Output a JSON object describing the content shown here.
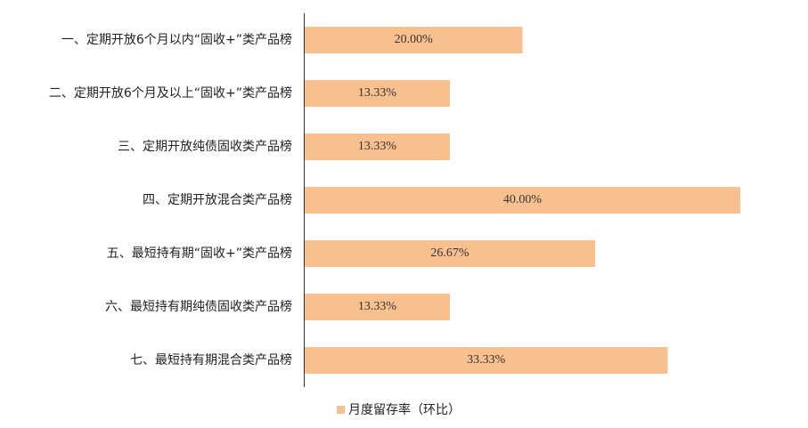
{
  "chart_data": {
    "type": "hbar",
    "categories": [
      "一、定期开放6个月以内“固收+”类产品榜",
      "二、定期开放6个月及以上“固收+”类产品榜",
      "三、定期开放纯债固收类产品榜",
      "四、定期开放混合类产品榜",
      "五、最短持有期“固收+”类产品榜",
      "六、最短持有期纯债固收类产品榜",
      "七、最短持有期混合类产品榜"
    ],
    "series": [
      {
        "name": "月度留存率（环比）",
        "color": "#f9c08f",
        "values": [
          20,
          13.33,
          13.33,
          40,
          26.67,
          13.33,
          33.33
        ],
        "value_labels": [
          "20.00%",
          "13.33%",
          "13.33%",
          "40.00%",
          "26.67%",
          "13.33%",
          "33.33%"
        ]
      }
    ]
  }
}
